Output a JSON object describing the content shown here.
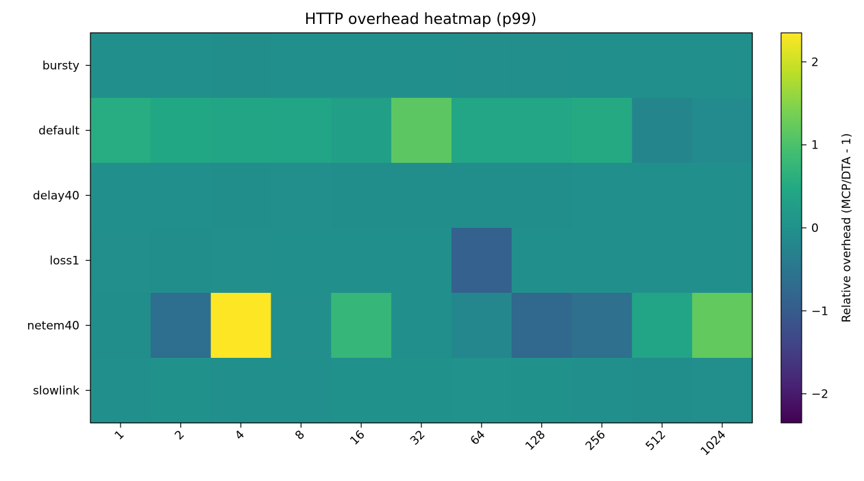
{
  "chart_data": {
    "type": "heatmap",
    "title": "HTTP overhead heatmap (p99)",
    "x_categories": [
      "1",
      "2",
      "4",
      "8",
      "16",
      "32",
      "64",
      "128",
      "256",
      "512",
      "1024"
    ],
    "y_categories": [
      "bursty",
      "default",
      "delay40",
      "loss1",
      "netem40",
      "slowlink"
    ],
    "values": [
      [
        -0.02,
        -0.02,
        -0.05,
        -0.01,
        -0.01,
        -0.02,
        -0.04,
        -0.03,
        -0.02,
        -0.01,
        -0.01
      ],
      [
        0.55,
        0.45,
        0.4,
        0.38,
        0.3,
        1.15,
        0.42,
        0.42,
        0.5,
        -0.22,
        -0.12
      ],
      [
        -0.02,
        -0.02,
        -0.05,
        -0.04,
        -0.05,
        -0.06,
        -0.05,
        -0.05,
        -0.02,
        -0.01,
        -0.01
      ],
      [
        -0.03,
        -0.05,
        -0.03,
        -0.02,
        -0.01,
        -0.02,
        -0.9,
        -0.02,
        -0.02,
        -0.02,
        -0.02
      ],
      [
        -0.06,
        -0.65,
        2.35,
        -0.03,
        0.75,
        -0.02,
        -0.18,
        -0.78,
        -0.62,
        0.38,
        1.2
      ],
      [
        -0.01,
        0.0,
        -0.01,
        -0.02,
        0.0,
        0.0,
        0.02,
        0.0,
        -0.01,
        -0.05,
        -0.03
      ]
    ],
    "colorbar": {
      "label": "Relative overhead (MCP/DTA - 1)",
      "vmin": -2.35,
      "vmax": 2.35,
      "ticks": [
        -2,
        -1,
        0,
        1,
        2
      ],
      "tick_labels": [
        "−2",
        "−1",
        "0",
        "1",
        "2"
      ],
      "colormap": "viridis"
    },
    "grid": false
  }
}
